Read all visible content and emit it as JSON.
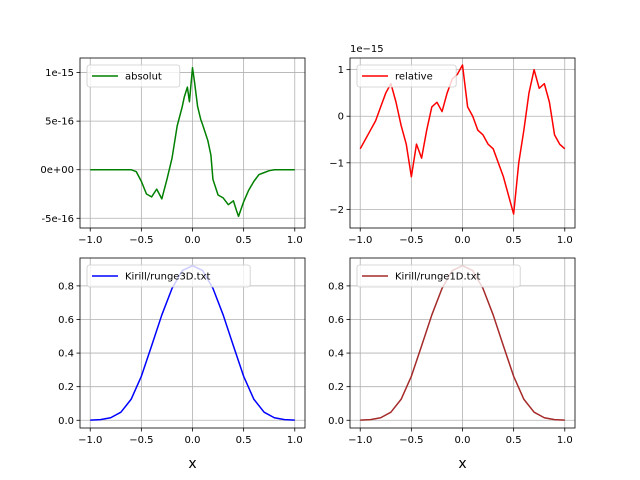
{
  "chart_data": [
    {
      "type": "line",
      "panel": "top-left",
      "title": "",
      "xlabel": "",
      "ylabel": "",
      "xlim": [
        -1.1,
        1.1
      ],
      "ylim": [
        -6e-16,
        1.15e-15
      ],
      "grid": true,
      "legend": "upper-left",
      "x_ticks": [
        -1.0,
        -0.5,
        0.0,
        0.5,
        1.0
      ],
      "x_tick_labels": [
        "−1.0",
        "−0.5",
        "0.0",
        "0.5",
        "1.0"
      ],
      "y_ticks": [
        -5e-16,
        0,
        5e-16,
        1e-15
      ],
      "y_tick_labels": [
        "-5e-16",
        "0e+00",
        "5e-16",
        "1e-15"
      ],
      "series": [
        {
          "name": "absolut",
          "color": "#008000",
          "x": [
            -1.0,
            -0.8,
            -0.6,
            -0.55,
            -0.5,
            -0.45,
            -0.4,
            -0.35,
            -0.3,
            -0.25,
            -0.2,
            -0.15,
            -0.1,
            -0.08,
            -0.05,
            -0.03,
            0.0,
            0.02,
            0.05,
            0.08,
            0.1,
            0.15,
            0.18,
            0.2,
            0.25,
            0.3,
            0.35,
            0.4,
            0.43,
            0.45,
            0.48,
            0.5,
            0.55,
            0.6,
            0.65,
            0.7,
            0.75,
            0.8,
            1.0
          ],
          "y": [
            0,
            0,
            0,
            -2e-17,
            -1.2e-16,
            -2.5e-16,
            -2.8e-16,
            -2e-16,
            -3e-16,
            -1e-16,
            1.2e-16,
            4.5e-16,
            6.5e-16,
            7.5e-16,
            8.5e-16,
            7e-16,
            1.05e-15,
            9e-16,
            6.5e-16,
            5.2e-16,
            4.6e-16,
            3e-16,
            1.5e-16,
            -1e-16,
            -2.6e-16,
            -2.9e-16,
            -3.6e-16,
            -3.2e-16,
            -4.2e-16,
            -4.8e-16,
            -3.9e-16,
            -3.3e-16,
            -2.1e-16,
            -1.2e-16,
            -5e-17,
            -3e-17,
            -1e-17,
            0,
            0
          ]
        }
      ]
    },
    {
      "type": "line",
      "panel": "top-right",
      "title": "",
      "xlabel": "",
      "ylabel": "",
      "offset_text": "1e−15",
      "xlim": [
        -1.1,
        1.1
      ],
      "ylim": [
        -2.4,
        1.25
      ],
      "grid": true,
      "legend": "upper-left",
      "x_ticks": [
        -1.0,
        -0.5,
        0.0,
        0.5,
        1.0
      ],
      "x_tick_labels": [
        "−1.0",
        "−0.5",
        "0.0",
        "0.5",
        "1.0"
      ],
      "y_ticks": [
        -2,
        -1,
        0,
        1
      ],
      "y_tick_labels": [
        "−2",
        "−1",
        "0",
        "1"
      ],
      "series": [
        {
          "name": "relative",
          "color": "#ff0000",
          "x": [
            -1.0,
            -0.95,
            -0.9,
            -0.85,
            -0.8,
            -0.75,
            -0.7,
            -0.65,
            -0.6,
            -0.55,
            -0.5,
            -0.45,
            -0.4,
            -0.35,
            -0.3,
            -0.25,
            -0.2,
            -0.15,
            -0.1,
            -0.05,
            0.0,
            0.05,
            0.1,
            0.15,
            0.2,
            0.25,
            0.3,
            0.35,
            0.4,
            0.45,
            0.5,
            0.55,
            0.6,
            0.65,
            0.7,
            0.75,
            0.8,
            0.85,
            0.9,
            0.95,
            1.0
          ],
          "y": [
            -0.7,
            -0.5,
            -0.3,
            -0.1,
            0.2,
            0.5,
            0.7,
            0.3,
            -0.2,
            -0.6,
            -1.3,
            -0.6,
            -0.9,
            -0.3,
            0.2,
            0.3,
            0.1,
            0.5,
            0.8,
            0.9,
            1.1,
            0.2,
            0.0,
            -0.3,
            -0.4,
            -0.6,
            -0.7,
            -1.0,
            -1.3,
            -1.7,
            -2.1,
            -1.0,
            -0.3,
            0.5,
            1.0,
            0.6,
            0.7,
            0.3,
            -0.4,
            -0.6,
            -0.7
          ]
        }
      ]
    },
    {
      "type": "line",
      "panel": "bottom-left",
      "title": "",
      "xlabel": "x",
      "ylabel": "",
      "xlim": [
        -1.1,
        1.1
      ],
      "ylim": [
        -0.046,
        0.966
      ],
      "grid": true,
      "legend": "upper-left",
      "x_ticks": [
        -1.0,
        -0.5,
        0.0,
        0.5,
        1.0
      ],
      "x_tick_labels": [
        "−1.0",
        "−0.5",
        "0.0",
        "0.5",
        "1.0"
      ],
      "y_ticks": [
        0.0,
        0.2,
        0.4,
        0.6,
        0.8
      ],
      "y_tick_labels": [
        "0.0",
        "0.2",
        "0.4",
        "0.6",
        "0.8"
      ],
      "series": [
        {
          "name": "Kirill/runge3D.txt",
          "color": "#0000ff",
          "x": [
            -1.0,
            -0.9,
            -0.8,
            -0.7,
            -0.6,
            -0.5,
            -0.4,
            -0.3,
            -0.2,
            -0.1,
            0.0,
            0.1,
            0.2,
            0.3,
            0.4,
            0.5,
            0.6,
            0.7,
            0.8,
            0.9,
            1.0
          ],
          "y": [
            0.0009,
            0.0041,
            0.015,
            0.048,
            0.125,
            0.262,
            0.443,
            0.627,
            0.785,
            0.891,
            0.92,
            0.891,
            0.785,
            0.627,
            0.443,
            0.262,
            0.125,
            0.048,
            0.015,
            0.0041,
            0.0009
          ]
        }
      ]
    },
    {
      "type": "line",
      "panel": "bottom-right",
      "title": "",
      "xlabel": "x",
      "ylabel": "",
      "xlim": [
        -1.1,
        1.1
      ],
      "ylim": [
        -0.046,
        0.966
      ],
      "grid": true,
      "legend": "upper-left",
      "x_ticks": [
        -1.0,
        -0.5,
        0.0,
        0.5,
        1.0
      ],
      "x_tick_labels": [
        "−1.0",
        "−0.5",
        "0.0",
        "0.5",
        "1.0"
      ],
      "y_ticks": [
        0.0,
        0.2,
        0.4,
        0.6,
        0.8
      ],
      "y_tick_labels": [
        "0.0",
        "0.2",
        "0.4",
        "0.6",
        "0.8"
      ],
      "series": [
        {
          "name": "Kirill/runge1D.txt",
          "color": "#a52a2a",
          "x": [
            -1.0,
            -0.9,
            -0.8,
            -0.7,
            -0.6,
            -0.5,
            -0.4,
            -0.3,
            -0.2,
            -0.1,
            0.0,
            0.1,
            0.2,
            0.3,
            0.4,
            0.5,
            0.6,
            0.7,
            0.8,
            0.9,
            1.0
          ],
          "y": [
            0.0009,
            0.0041,
            0.015,
            0.048,
            0.125,
            0.262,
            0.443,
            0.627,
            0.785,
            0.891,
            0.92,
            0.891,
            0.785,
            0.627,
            0.443,
            0.262,
            0.125,
            0.048,
            0.015,
            0.0041,
            0.0009
          ]
        }
      ]
    }
  ]
}
